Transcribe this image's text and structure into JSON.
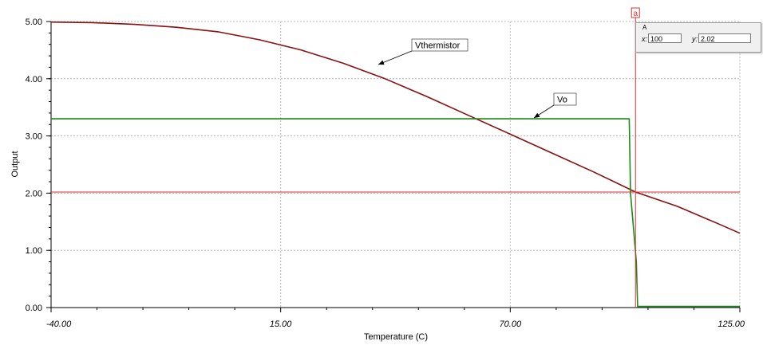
{
  "chart_data": {
    "type": "line",
    "title": "",
    "xlabel": "Temperature (C)",
    "ylabel": "Output",
    "xlim": [
      -40,
      125
    ],
    "ylim": [
      0,
      5
    ],
    "x_ticks": [
      "-40.00",
      "15.00",
      "70.00",
      "125.00"
    ],
    "y_ticks": [
      "0.00",
      "1.00",
      "2.00",
      "3.00",
      "4.00",
      "5.00"
    ],
    "grid": true,
    "series": [
      {
        "name": "Vthermistor",
        "color": "#8b0f0f",
        "x": [
          -40,
          -30,
          -20,
          -10,
          0,
          10,
          20,
          30,
          40,
          50,
          60,
          70,
          80,
          90,
          100,
          110,
          120,
          125
        ],
        "y": [
          4.99,
          4.98,
          4.95,
          4.9,
          4.82,
          4.68,
          4.5,
          4.27,
          4.0,
          3.69,
          3.36,
          3.03,
          2.7,
          2.37,
          2.02,
          1.77,
          1.46,
          1.3
        ]
      },
      {
        "name": "Vo",
        "color": "#1a8a1a",
        "x": [
          -40,
          98.5,
          98.8,
          100.2,
          100.5,
          125
        ],
        "y": [
          3.3,
          3.3,
          2.0,
          0.8,
          0.02,
          0.02
        ]
      }
    ],
    "cursor": {
      "name": "a",
      "label": "A",
      "x_label": "x:",
      "y_label": "y:",
      "x": 100,
      "x_text": "100",
      "y": 2.02,
      "y_text": "2.02",
      "color": "#e03030"
    }
  }
}
